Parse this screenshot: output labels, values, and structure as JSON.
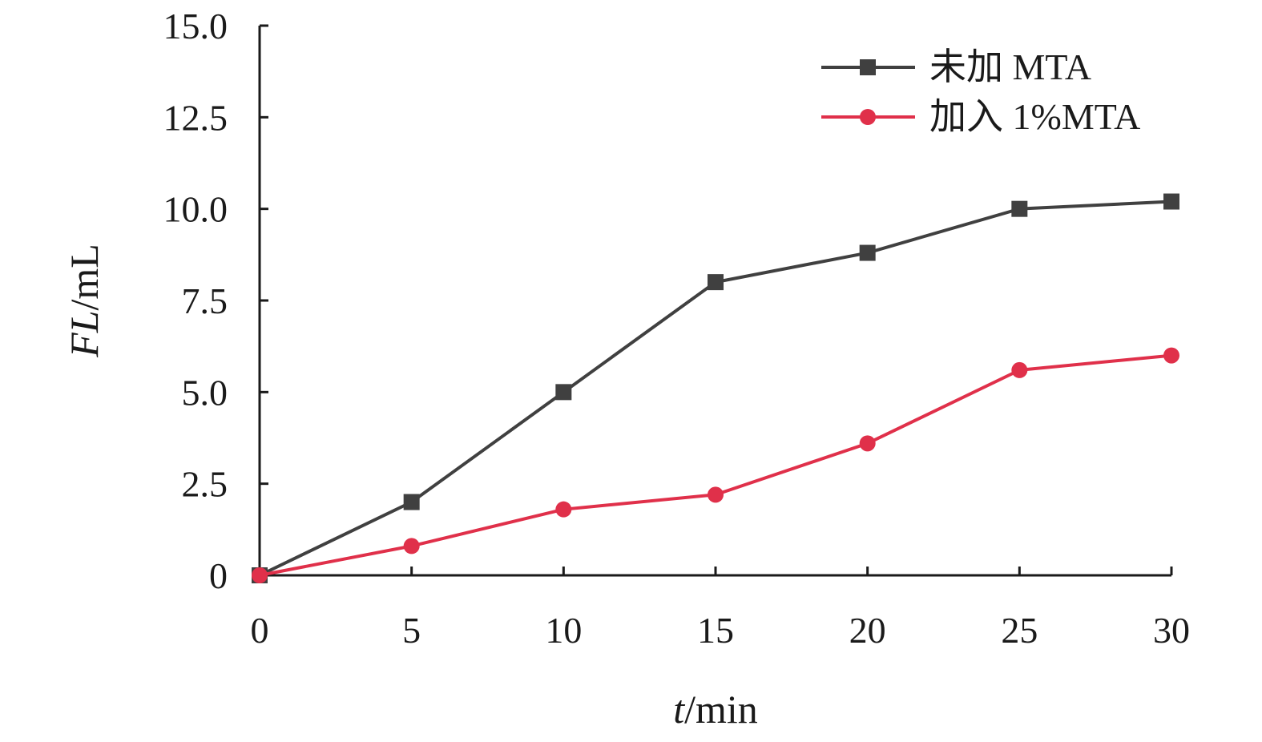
{
  "chart_data": {
    "type": "line",
    "title": "",
    "xlabel": {
      "var": "t",
      "unit": "/min"
    },
    "ylabel": {
      "var": "FL",
      "unit": "/mL"
    },
    "x": [
      0,
      5,
      10,
      15,
      20,
      25,
      30
    ],
    "xlim": [
      0,
      30
    ],
    "ylim": [
      0,
      15
    ],
    "xticks": [
      0,
      5,
      10,
      15,
      20,
      25,
      30
    ],
    "xtick_labels": [
      "0",
      "5",
      "10",
      "15",
      "20",
      "25",
      "30"
    ],
    "yticks": [
      0,
      2.5,
      5,
      7.5,
      10,
      12.5,
      15
    ],
    "ytick_labels": [
      "0",
      "2.5",
      "5.0",
      "7.5",
      "10.0",
      "12.5",
      "15.0"
    ],
    "grid": false,
    "legend_position": "top-right",
    "series": [
      {
        "name": "未加 MTA",
        "values": [
          0,
          2.0,
          5.0,
          8.0,
          8.8,
          10.0,
          10.2
        ],
        "color": "#404040",
        "marker": "square"
      },
      {
        "name": "加入 1%MTA",
        "values": [
          0,
          0.8,
          1.8,
          2.2,
          3.6,
          5.6,
          6.0
        ],
        "color": "#e0304a",
        "marker": "circle"
      }
    ]
  }
}
